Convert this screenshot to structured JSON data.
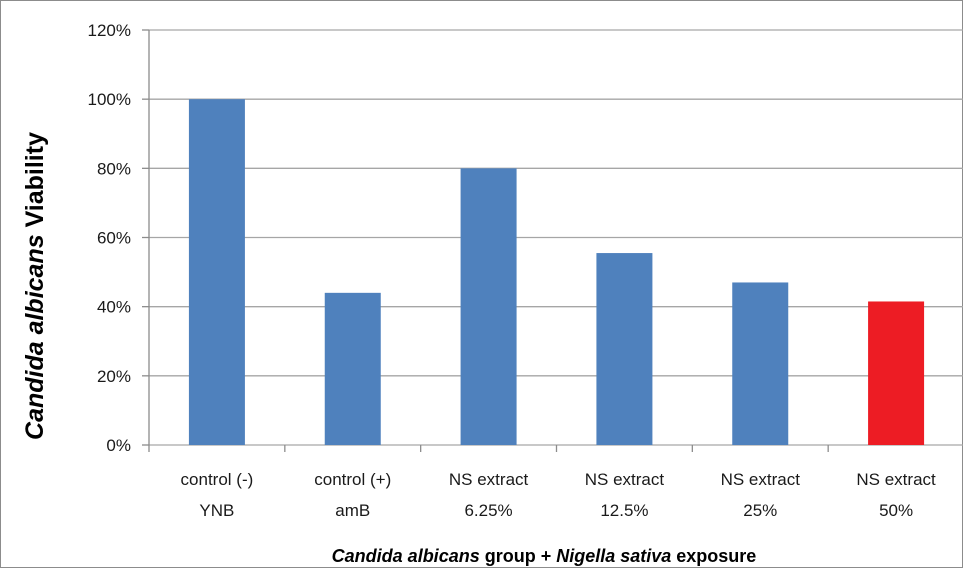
{
  "chart_data": {
    "type": "bar",
    "categories": [
      [
        "control (-)",
        "YNB"
      ],
      [
        "control (+)",
        "amB"
      ],
      [
        "NS extract",
        "6.25%"
      ],
      [
        "NS extract",
        "12.5%"
      ],
      [
        "NS extract",
        "25%"
      ],
      [
        "NS  extract",
        "50%"
      ]
    ],
    "values": [
      100,
      44,
      80,
      55.5,
      47,
      41.5
    ],
    "bar_colors": [
      "#4f81bd",
      "#4f81bd",
      "#4f81bd",
      "#4f81bd",
      "#4f81bd",
      "#ed1c24"
    ],
    "ylim": [
      0,
      120
    ],
    "yticks": [
      0,
      20,
      40,
      60,
      80,
      100,
      120
    ],
    "ytick_labels": [
      "0%",
      "20%",
      "40%",
      "60%",
      "80%",
      "100%",
      "120%"
    ],
    "ylabel": {
      "italic": "Candida albicans",
      "plain": " Viability"
    },
    "xlabel": {
      "italic1": "Candida albicans",
      "plain1": " group + ",
      "italic2": "Nigella sativa",
      "plain2": " exposure"
    },
    "grid": "horizontal",
    "legend": "none"
  }
}
